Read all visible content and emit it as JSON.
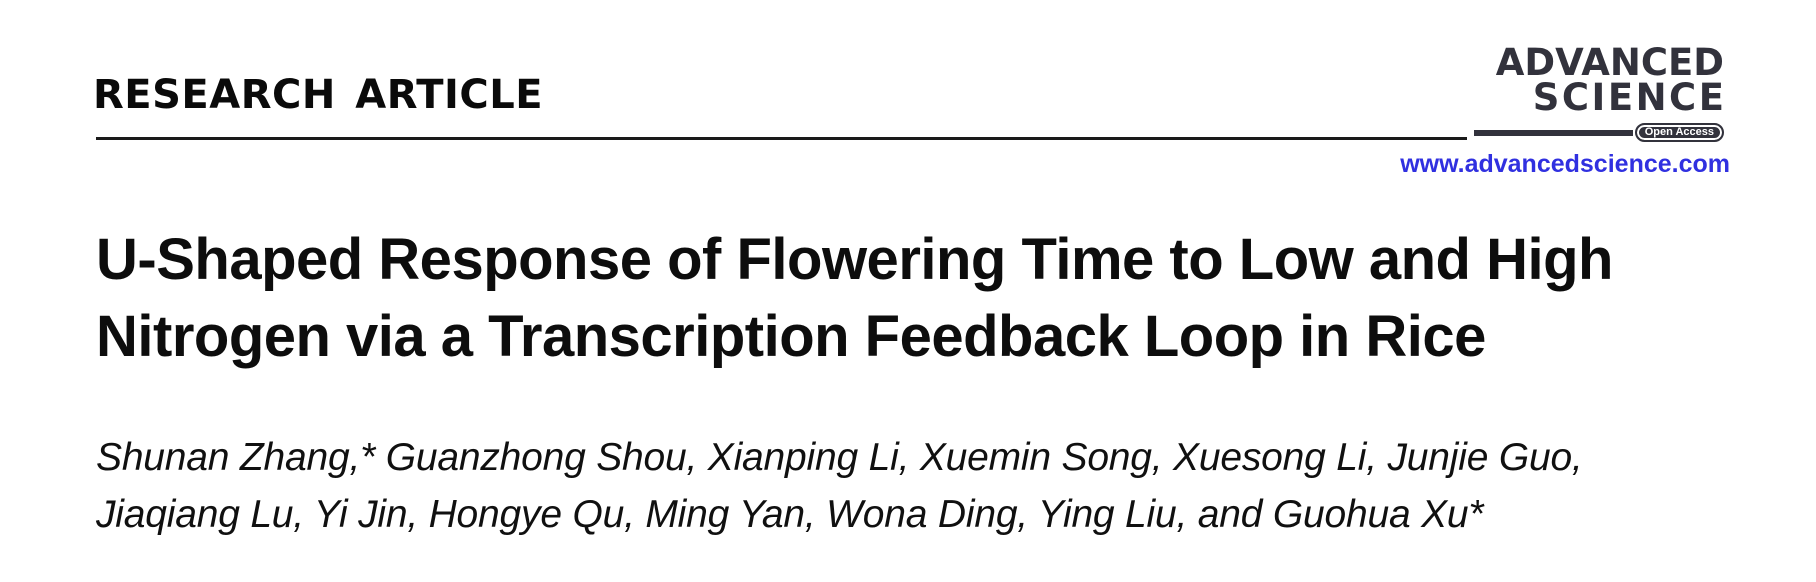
{
  "colors": {
    "logo_dark": "#32323c",
    "link_blue": "#3030e0",
    "text_black": "#0d0d0d",
    "rule_dark": "#1a1a1a"
  },
  "header": {
    "article_type": "RESEARCH ARTICLE",
    "journal": {
      "name_line1": "ADVANCED",
      "name_line2": "SCIENCE",
      "open_access_badge": "Open Access",
      "website": "www.advancedscience.com"
    }
  },
  "article": {
    "title_lines": [
      "U-Shaped Response of Flowering Time to Low and High",
      "Nitrogen via a Transcription Feedback Loop in Rice"
    ],
    "author_lines": [
      "Shunan Zhang,* Guanzhong Shou, Xianping Li, Xuemin Song, Xuesong Li, Junjie Guo,",
      "Jiaqiang Lu, Yi Jin, Hongye Qu, Ming Yan, Wona Ding, Ying Liu, and Guohua Xu*"
    ]
  }
}
